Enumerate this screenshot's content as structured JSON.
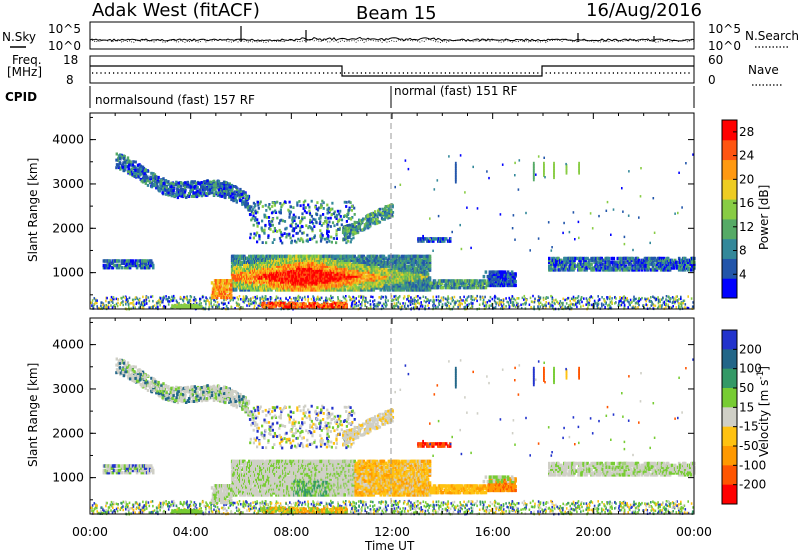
{
  "header": {
    "station": "Adak West (fitACF)",
    "beam": "Beam 15",
    "date": "16/Aug/2016"
  },
  "noise_panel": {
    "left_label": "N.Sky",
    "right_label": "N.Search",
    "left_ticks": [
      "10^5",
      "10^0"
    ],
    "right_ticks": [
      "10^5",
      "10^0"
    ]
  },
  "freq_panel": {
    "left_label_1": "Freq.",
    "left_label_2": "[MHz]",
    "left_ticks": [
      "18",
      "8"
    ],
    "right_label": "Nave",
    "right_ticks": [
      "60",
      "0"
    ]
  },
  "cpid_panel": {
    "label": "CPID",
    "modes": [
      {
        "text": "normalsound (fast) 157 RF",
        "start_hour": 0
      },
      {
        "text": "normal (fast) 151 RF",
        "start_hour": 12
      }
    ]
  },
  "colors": {
    "power_scale": [
      "#0000ff",
      "#2255aa",
      "#33889a",
      "#55aa66",
      "#88cc44",
      "#eecc22",
      "#ff9911",
      "#ff5511",
      "#ff0000"
    ],
    "velocity_scale": [
      "#2233cc",
      "#226688",
      "#339966",
      "#77cc33",
      "#cfcfc6",
      "#ffc211",
      "#ff9900",
      "#ff5500",
      "#ff0000"
    ]
  },
  "chart_data": [
    {
      "type": "heatmap",
      "name": "power",
      "ylabel": "Slant Range [km]",
      "yticks": [
        "1000",
        "2000",
        "3000",
        "4000"
      ],
      "xticks": [
        "00:00",
        "04:00",
        "08:00",
        "12:00",
        "16:00",
        "20:00",
        "00:00"
      ],
      "xlim_hours": [
        0,
        24
      ],
      "ylim_km": [
        180,
        4600
      ],
      "colorbar_label": "Power [dB]",
      "colorbar_ticks": [
        "4",
        "8",
        "12",
        "16",
        "20",
        "24",
        "28"
      ],
      "colorbar_range": [
        0,
        30
      ]
    },
    {
      "type": "heatmap",
      "name": "velocity",
      "ylabel": "Slant Range [km]",
      "yticks": [
        "1000",
        "2000",
        "3000",
        "4000"
      ],
      "xticks": [
        "00:00",
        "04:00",
        "08:00",
        "12:00",
        "16:00",
        "20:00",
        "00:00"
      ],
      "xlabel": "Time UT",
      "xlim_hours": [
        0,
        24
      ],
      "ylim_km": [
        180,
        4600
      ],
      "colorbar_label": "Velocity [m s^-1]",
      "colorbar_ticks": [
        "200",
        "100",
        "50",
        "15",
        "-15",
        "-50",
        "-100",
        "-200"
      ]
    }
  ]
}
